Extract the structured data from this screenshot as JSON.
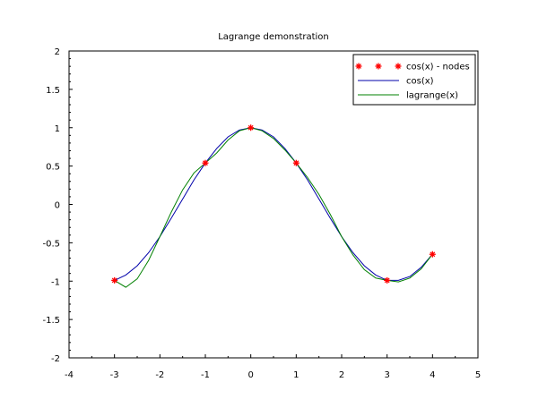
{
  "chart_data": {
    "type": "line",
    "title": "Lagrange demonstration",
    "xlabel": "",
    "ylabel": "",
    "xlim": [
      -4,
      5
    ],
    "ylim": [
      -2,
      2
    ],
    "x_ticks": [
      -4,
      -3,
      -2,
      -1,
      0,
      1,
      2,
      3,
      4,
      5
    ],
    "x_tick_labels": [
      "-4",
      "-3",
      "-2",
      "-1",
      "0",
      "1",
      "2",
      "3",
      "4",
      "5"
    ],
    "y_ticks": [
      -2,
      -1.5,
      -1,
      -0.5,
      0,
      0.5,
      1,
      1.5,
      2
    ],
    "y_tick_labels": [
      "-2",
      "-1.5",
      "-1",
      "-0.5",
      "0",
      "0.5",
      "1",
      "1.5",
      "2"
    ],
    "grid": false,
    "legend_position": "top-right",
    "series": [
      {
        "name": "cos(x) - nodes",
        "style": "markers",
        "marker": "*",
        "color": "#ff0000",
        "x": [
          -3,
          -1,
          0,
          1,
          3,
          4
        ],
        "y": [
          -0.99,
          0.54,
          1.0,
          0.54,
          -0.99,
          -0.65
        ]
      },
      {
        "name": "cos(x)",
        "style": "line",
        "color": "#0000aa",
        "x": [
          -3,
          -2.75,
          -2.5,
          -2.25,
          -2,
          -1.75,
          -1.5,
          -1.25,
          -1,
          -0.75,
          -0.5,
          -0.25,
          0,
          0.25,
          0.5,
          0.75,
          1,
          1.25,
          1.5,
          1.75,
          2,
          2.25,
          2.5,
          2.75,
          3,
          3.25,
          3.5,
          3.75,
          4
        ],
        "y": [
          -0.99,
          -0.92,
          -0.8,
          -0.63,
          -0.42,
          -0.18,
          0.07,
          0.32,
          0.54,
          0.73,
          0.88,
          0.97,
          1.0,
          0.97,
          0.88,
          0.73,
          0.54,
          0.32,
          0.07,
          -0.18,
          -0.42,
          -0.63,
          -0.8,
          -0.92,
          -0.99,
          -0.99,
          -0.94,
          -0.82,
          -0.65
        ]
      },
      {
        "name": "lagrange(x)",
        "style": "line",
        "color": "#008000",
        "x": [
          -3,
          -2.75,
          -2.5,
          -2.25,
          -2,
          -1.75,
          -1.5,
          -1.25,
          -1,
          -0.75,
          -0.5,
          -0.25,
          0,
          0.25,
          0.5,
          0.75,
          1,
          1.25,
          1.5,
          1.75,
          2,
          2.25,
          2.5,
          2.75,
          3,
          3.25,
          3.5,
          3.75,
          4
        ],
        "y": [
          -0.99,
          -1.08,
          -0.97,
          -0.73,
          -0.42,
          -0.1,
          0.19,
          0.41,
          0.54,
          0.67,
          0.84,
          0.96,
          1.0,
          0.96,
          0.86,
          0.71,
          0.54,
          0.35,
          0.13,
          -0.13,
          -0.42,
          -0.66,
          -0.85,
          -0.96,
          -0.99,
          -1.01,
          -0.96,
          -0.84,
          -0.65
        ]
      }
    ]
  }
}
